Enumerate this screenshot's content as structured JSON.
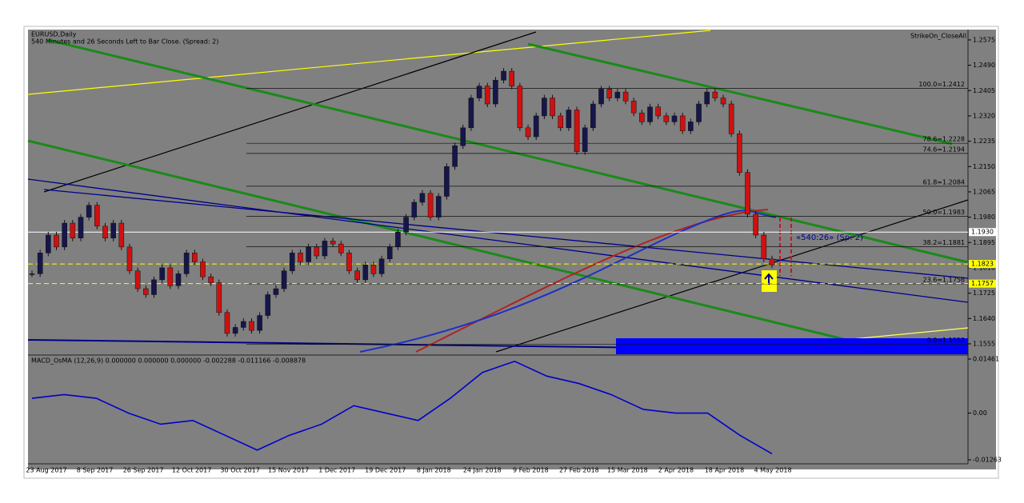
{
  "header": {
    "symbol": "EURUSD,Daily",
    "status": "540 Minutes and 26 Seconds Left to Bar Close. (Spread: 2)",
    "expert": "StrikeOn_CloseAll"
  },
  "annotation": "«540:26» (Sp: 2)",
  "chart": {
    "type": "candlestick",
    "up_color": "#16164a",
    "down_color": "#d01010",
    "closes": [
      1.179,
      1.186,
      1.192,
      1.188,
      1.196,
      1.191,
      1.198,
      1.202,
      1.195,
      1.191,
      1.196,
      1.188,
      1.18,
      1.174,
      1.172,
      1.177,
      1.181,
      1.175,
      1.179,
      1.186,
      1.183,
      1.178,
      1.176,
      1.166,
      1.159,
      1.161,
      1.163,
      1.16,
      1.165,
      1.172,
      1.174,
      1.18,
      1.186,
      1.183,
      1.188,
      1.185,
      1.19,
      1.189,
      1.186,
      1.18,
      1.177,
      1.182,
      1.179,
      1.184,
      1.188,
      1.193,
      1.198,
      1.203,
      1.206,
      1.198,
      1.205,
      1.215,
      1.222,
      1.228,
      1.238,
      1.242,
      1.236,
      1.244,
      1.247,
      1.242,
      1.228,
      1.225,
      1.232,
      1.238,
      1.232,
      1.228,
      1.234,
      1.22,
      1.228,
      1.236,
      1.241,
      1.238,
      1.24,
      1.237,
      1.233,
      1.23,
      1.235,
      1.232,
      1.23,
      1.232,
      1.227,
      1.23,
      1.236,
      1.24,
      1.238,
      1.236,
      1.226,
      1.213,
      1.199,
      1.192,
      1.184,
      1.182
    ],
    "ylim": [
      1.1528,
      1.2607
    ],
    "yticks": [
      1.2575,
      {
        "value": 1.249,
        "label": "1.2490"
      },
      1.2405,
      {
        "value": 1.232,
        "label": "1.2320"
      },
      1.2235,
      {
        "value": 1.215,
        "label": "1.2150"
      },
      1.2065,
      {
        "value": 1.198,
        "label": "1.1980"
      },
      1.1895,
      {
        "value": 1.181,
        "label": "1.1810"
      },
      1.1725,
      {
        "value": 1.164,
        "label": "1.1640"
      },
      1.1555
    ],
    "price_marks": [
      {
        "value": 1.193,
        "label": "1.1930",
        "color": "#ffffff"
      },
      {
        "value": 1.1823,
        "label": "1.1823",
        "color": "#ffff00"
      },
      {
        "value": 1.1757,
        "label": "1.1757",
        "color": "#ffff00"
      }
    ],
    "fib_levels": [
      {
        "value": 1.2412,
        "label": "100.0=1.2412"
      },
      {
        "value": 1.2228,
        "label": "78.6=1.2228"
      },
      {
        "value": 1.2194,
        "label": "74.6=1.2194"
      },
      {
        "value": 1.2084,
        "label": "61.8=1.2084"
      },
      {
        "value": 1.1983,
        "label": "50.0=1.1983"
      },
      {
        "value": 1.1881,
        "label": "38.2=1.1881"
      },
      {
        "value": 1.1756,
        "label": "23.6=1.1756"
      },
      {
        "value": 1.1553,
        "label": "0.0=1.1553"
      }
    ],
    "dates": [
      "23 Aug 2017",
      "8 Sep 2017",
      "26 Sep 2017",
      "12 Oct 2017",
      "30 Oct 2017",
      "15 Nov 2017",
      "1 Dec 2017",
      "19 Dec 2017",
      "8 Jan 2018",
      "24 Jan 2018",
      "9 Feb 2018",
      "27 Feb 2018",
      "15 Mar 2018",
      "2 Apr 2018",
      "18 Apr 2018",
      "4 May 2018"
    ]
  },
  "macd": {
    "label": "MACD_OsMA (12,26,9) 0.000000 0.000000 0.000000 -0.002288 -0.011166 -0.008878",
    "color": "#0000cc",
    "values": [
      0.004,
      0.005,
      0.004,
      0.0,
      -0.003,
      -0.002,
      -0.006,
      -0.01,
      -0.006,
      -0.003,
      0.002,
      0.0,
      -0.002,
      0.004,
      0.011,
      0.014,
      0.01,
      0.008,
      0.005,
      0.001,
      0.0,
      0.0,
      -0.006,
      -0.011
    ],
    "ylim": [
      -0.01263,
      0.01461
    ],
    "yticks": [
      0.01461,
      {
        "value": 0,
        "label": "0.00"
      },
      -0.01263
    ]
  }
}
